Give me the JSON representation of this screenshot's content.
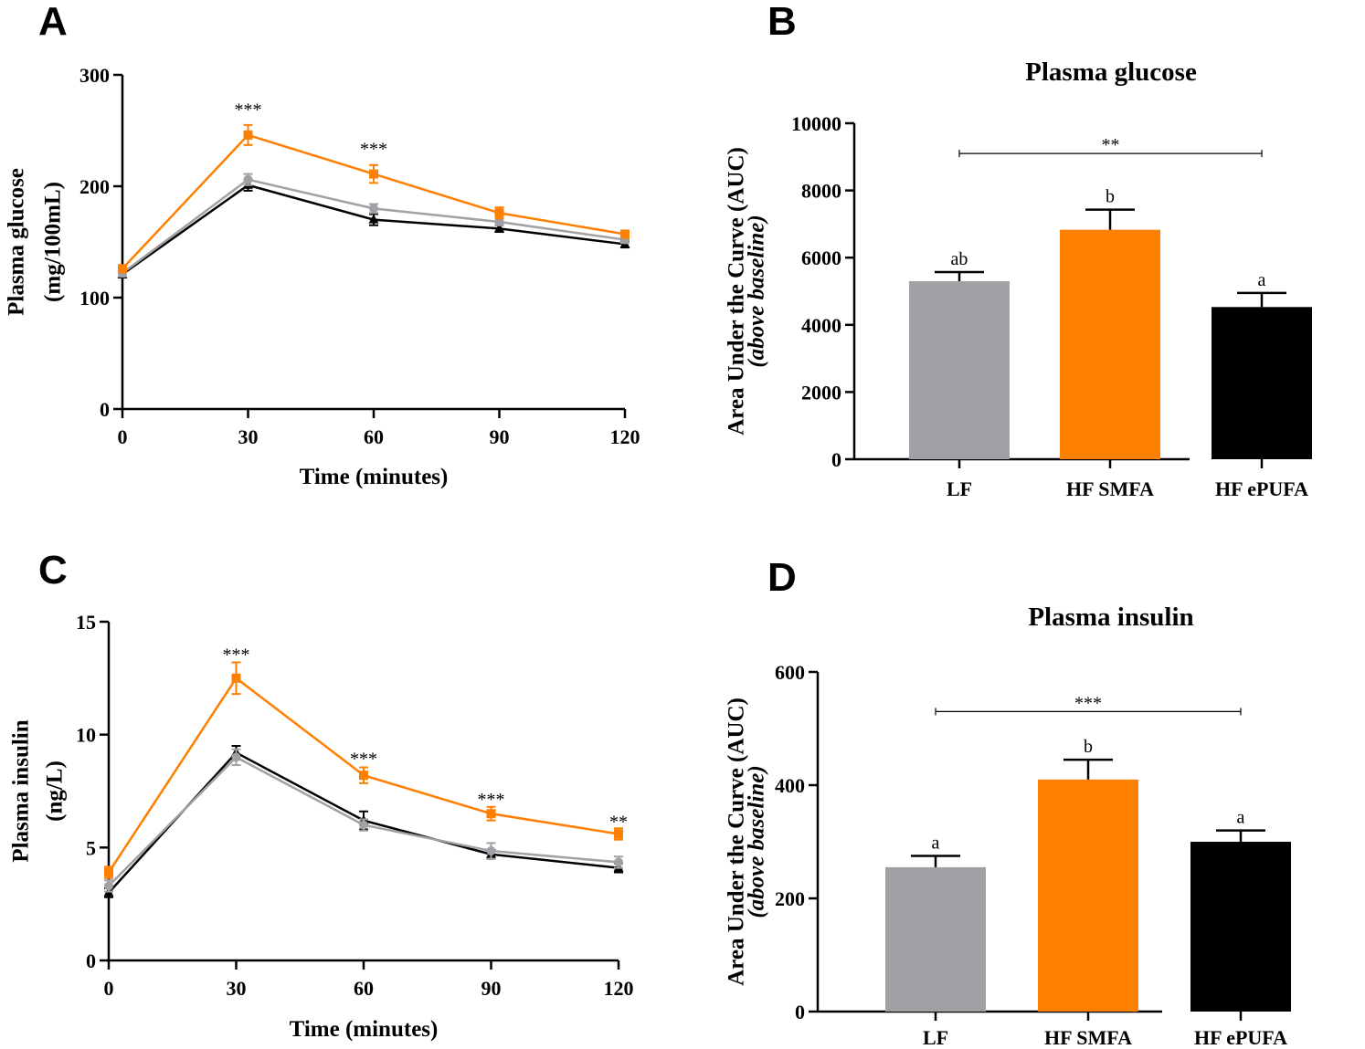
{
  "panels": {
    "A": {
      "letter": "A"
    },
    "B": {
      "letter": "B"
    },
    "C": {
      "letter": "C"
    },
    "D": {
      "letter": "D"
    }
  },
  "colors": {
    "LF": "#a0a0a5",
    "HF_SMFA": "#ff7f00",
    "HF_ePUFA": "#000000"
  },
  "chart_data": [
    {
      "id": "A",
      "type": "line",
      "title": "",
      "xlabel": "Time (minutes)",
      "ylabel": [
        "Plasma glucose",
        "(mg/100mL)"
      ],
      "x": [
        0,
        30,
        60,
        90,
        120
      ],
      "xticks": [
        "0",
        "30",
        "60",
        "90",
        "120"
      ],
      "ylim": [
        0,
        300
      ],
      "yticks": [
        0,
        100,
        200,
        300
      ],
      "series": [
        {
          "name": "HF ePUFA",
          "color": "#000000",
          "marker": "triangle",
          "values": [
            121,
            201,
            170,
            162,
            148
          ],
          "errors": [
            3,
            5,
            5,
            3,
            3
          ]
        },
        {
          "name": "LF",
          "color": "#a0a0a5",
          "marker": "circle",
          "values": [
            122,
            206,
            180,
            168,
            152
          ],
          "errors": [
            3,
            5,
            4,
            3,
            3
          ]
        },
        {
          "name": "HF SMFA",
          "color": "#ff7f00",
          "marker": "square",
          "values": [
            126,
            246,
            211,
            176,
            157
          ],
          "errors": [
            3,
            9,
            8,
            5,
            3
          ]
        }
      ],
      "annotations": [
        {
          "x": 30,
          "y": 270,
          "text": "***"
        },
        {
          "x": 60,
          "y": 235,
          "text": "***"
        }
      ]
    },
    {
      "id": "B",
      "type": "bar",
      "title": "Plasma glucose",
      "ylabel": "Area Under the Curve (AUC)",
      "ylabel_italic": "(above baseline)",
      "categories": [
        "LF",
        "HF SMFA",
        "HF ePUFA"
      ],
      "values": [
        5300,
        6830,
        4530
      ],
      "errors": [
        270,
        600,
        420
      ],
      "colors": [
        "#a0a0a5",
        "#ff7f00",
        "#000000"
      ],
      "letters": [
        "ab",
        "b",
        "a"
      ],
      "ylim": [
        0,
        10000
      ],
      "yticks": [
        0,
        2000,
        4000,
        6000,
        8000,
        10000
      ],
      "bracket": {
        "from": 0,
        "to": 2,
        "y": 9100,
        "text": "**"
      }
    },
    {
      "id": "C",
      "type": "line",
      "title": "",
      "xlabel": "Time (minutes)",
      "ylabel": [
        "Plasma insulin",
        "(ng/L)"
      ],
      "x": [
        0,
        30,
        60,
        90,
        120
      ],
      "xticks": [
        "0",
        "30",
        "60",
        "90",
        "120"
      ],
      "ylim": [
        0,
        15
      ],
      "yticks": [
        0,
        5,
        10,
        15
      ],
      "series": [
        {
          "name": "HF ePUFA",
          "color": "#000000",
          "marker": "triangle",
          "values": [
            3.0,
            9.2,
            6.2,
            4.7,
            4.1
          ],
          "errors": [
            0.2,
            0.3,
            0.4,
            0.2,
            0.2
          ]
        },
        {
          "name": "LF",
          "color": "#a0a0a5",
          "marker": "circle",
          "values": [
            3.3,
            9.0,
            6.0,
            4.85,
            4.35
          ],
          "errors": [
            0.25,
            0.35,
            0.25,
            0.35,
            0.25
          ]
        },
        {
          "name": "HF SMFA",
          "color": "#ff7f00",
          "marker": "square",
          "values": [
            3.9,
            12.5,
            8.2,
            6.5,
            5.6
          ],
          "errors": [
            0.25,
            0.7,
            0.35,
            0.3,
            0.25
          ]
        }
      ],
      "annotations": [
        {
          "x": 30,
          "y": 13.6,
          "text": "***"
        },
        {
          "x": 60,
          "y": 9.0,
          "text": "***"
        },
        {
          "x": 90,
          "y": 7.2,
          "text": "***"
        },
        {
          "x": 120,
          "y": 6.2,
          "text": "**"
        }
      ]
    },
    {
      "id": "D",
      "type": "bar",
      "title": "Plasma insulin",
      "ylabel": "Area Under the Curve (AUC)",
      "ylabel_italic": "(above baseline)",
      "categories": [
        "LF",
        "HF SMFA",
        "HF ePUFA"
      ],
      "values": [
        255,
        410,
        300
      ],
      "errors": [
        20,
        35,
        20
      ],
      "colors": [
        "#a0a0a5",
        "#ff7f00",
        "#000000"
      ],
      "letters": [
        "a",
        "b",
        "a"
      ],
      "ylim": [
        0,
        600
      ],
      "yticks": [
        0,
        200,
        400,
        600
      ],
      "bracket": {
        "from": 0,
        "to": 2,
        "y": 530,
        "text": "***"
      }
    }
  ]
}
